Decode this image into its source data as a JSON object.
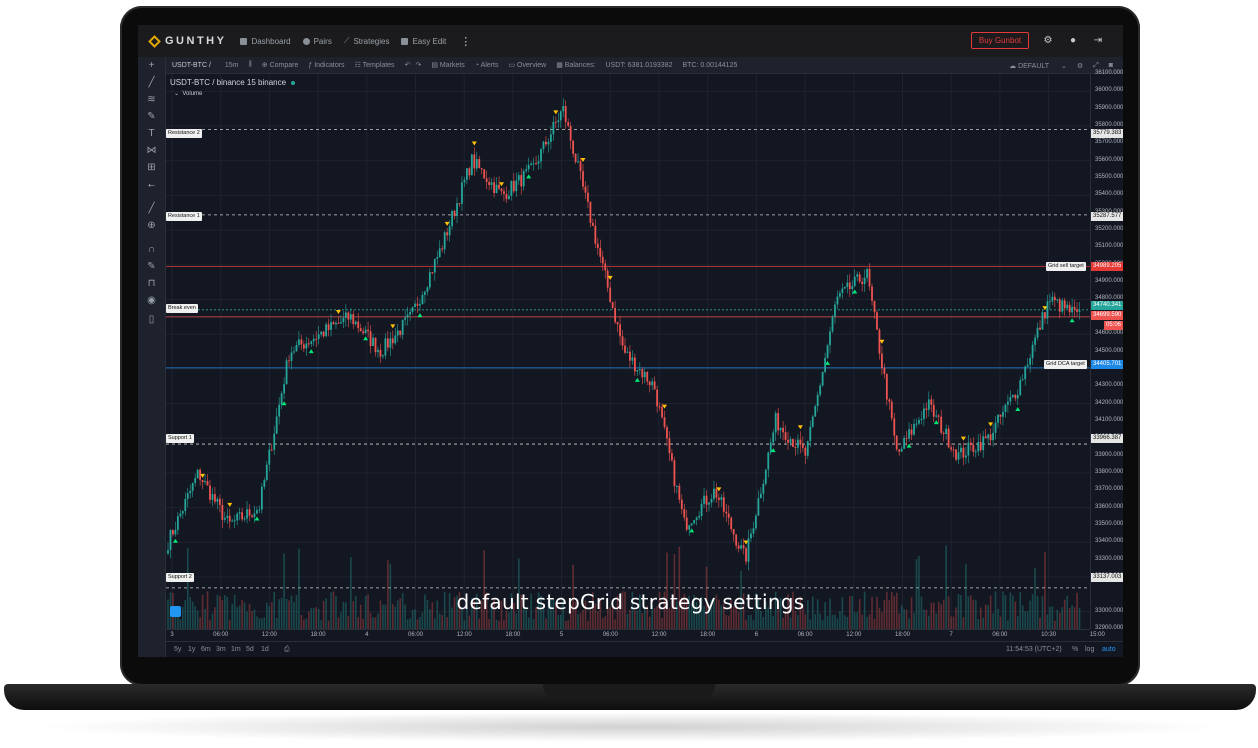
{
  "nav": {
    "logo": "GUNTHY",
    "items": [
      {
        "label": "Dashboard",
        "icon": "grid-icon"
      },
      {
        "label": "Pairs",
        "icon": "coin-icon"
      },
      {
        "label": "Strategies",
        "icon": "trend-icon"
      },
      {
        "label": "Easy Edit",
        "icon": "edit-icon"
      }
    ],
    "buy_label": "Buy Gunbot"
  },
  "toolbar": {
    "symbol": "USDT-BTC /",
    "interval": "15m",
    "compare": "Compare",
    "indicators": "Indicators",
    "templates": "Templates",
    "markets": "Markets",
    "alerts": "Alerts",
    "overview": "Overview",
    "balances": "Balances:",
    "usdt_balance": "USDT: 6381.0193382",
    "btc_balance": "BTC: 0.00144125",
    "layout": "DEFAULT"
  },
  "legend": {
    "title": "USDT-BTC / binance  15  binance",
    "volume": "Volume"
  },
  "levels": {
    "resistance2": {
      "label": "Resistance 2",
      "value": "35779.383"
    },
    "resistance1": {
      "label": "Resistance 1",
      "value": "35287.577"
    },
    "grid_sell": {
      "label": "Grid sell target",
      "value": "34989.205"
    },
    "last_price": {
      "value": "34740.341"
    },
    "break_even": {
      "label": "Break even",
      "value": "34699.590"
    },
    "countdown": {
      "value": "05:06"
    },
    "grid_dca": {
      "label": "Grid DCA target",
      "value": "34405.701"
    },
    "support1": {
      "label": "Support 1",
      "value": "33966.387"
    },
    "support2": {
      "label": "Support 2",
      "value": "33137.003"
    }
  },
  "price_ticks": [
    "36100.000",
    "36000.000",
    "35900.000",
    "35800.000",
    "35700.000",
    "35600.000",
    "35500.000",
    "35400.000",
    "35300.000",
    "35200.000",
    "35100.000",
    "35000.000",
    "34900.000",
    "34800.000",
    "34600.000",
    "34500.000",
    "34300.000",
    "34200.000",
    "34100.000",
    "34000.000",
    "33900.000",
    "33800.000",
    "33700.000",
    "33600.000",
    "33500.000",
    "33400.000",
    "33300.000",
    "33200.000",
    "33000.000",
    "32900.000"
  ],
  "time_ticks": [
    "3",
    "06:00",
    "12:00",
    "18:00",
    "4",
    "06:00",
    "12:00",
    "18:00",
    "5",
    "06:00",
    "12:00",
    "18:00",
    "6",
    "06:00",
    "12:00",
    "18:00",
    "7",
    "06:00",
    "10:30",
    "15:00"
  ],
  "bottombar": {
    "ranges": [
      "5y",
      "1y",
      "6m",
      "3m",
      "1m",
      "5d",
      "1d"
    ],
    "clock": "11:54:53 (UTC+2)",
    "pct": "%",
    "log": "log",
    "auto": "auto"
  },
  "caption": "default stepGrid strategy settings",
  "colors": {
    "up": "#26a69a",
    "down": "#ef5350",
    "buy_marker": "#00e676",
    "sell_marker": "#ffc107",
    "accent": "#e23a3a"
  },
  "chart_data": {
    "type": "candlestick",
    "symbol": "USDT-BTC",
    "exchange": "binance",
    "interval": "15",
    "close_keypoints": [
      {
        "x": "3 00:00",
        "y": 33400
      },
      {
        "x": "3 02:00",
        "y": 33800
      },
      {
        "x": "3 04:00",
        "y": 33500
      },
      {
        "x": "3 06:00",
        "y": 33600
      },
      {
        "x": "3 10:00",
        "y": 34500
      },
      {
        "x": "3 12:00",
        "y": 34600
      },
      {
        "x": "3 18:00",
        "y": 34700
      },
      {
        "x": "4 00:00",
        "y": 34500
      },
      {
        "x": "4 04:00",
        "y": 34700
      },
      {
        "x": "4 08:00",
        "y": 35100
      },
      {
        "x": "4 10:00",
        "y": 35600
      },
      {
        "x": "4 14:00",
        "y": 35400
      },
      {
        "x": "4 18:00",
        "y": 35550
      },
      {
        "x": "4 23:00",
        "y": 35900
      },
      {
        "x": "5 02:00",
        "y": 35200
      },
      {
        "x": "5 06:00",
        "y": 34500
      },
      {
        "x": "5 10:00",
        "y": 34300
      },
      {
        "x": "5 12:00",
        "y": 33500
      },
      {
        "x": "5 16:00",
        "y": 33700
      },
      {
        "x": "5 18:00",
        "y": 33300
      },
      {
        "x": "5 22:00",
        "y": 34100
      },
      {
        "x": "6 02:00",
        "y": 33900
      },
      {
        "x": "6 06:00",
        "y": 34800
      },
      {
        "x": "6 10:00",
        "y": 34950
      },
      {
        "x": "6 12:00",
        "y": 33900
      },
      {
        "x": "6 16:00",
        "y": 34200
      },
      {
        "x": "6 20:00",
        "y": 33900
      },
      {
        "x": "7 00:00",
        "y": 34000
      },
      {
        "x": "7 04:00",
        "y": 34300
      },
      {
        "x": "7 08:00",
        "y": 34800
      },
      {
        "x": "7 12:00",
        "y": 34700
      }
    ],
    "ylim": [
      32900,
      36100
    ]
  }
}
